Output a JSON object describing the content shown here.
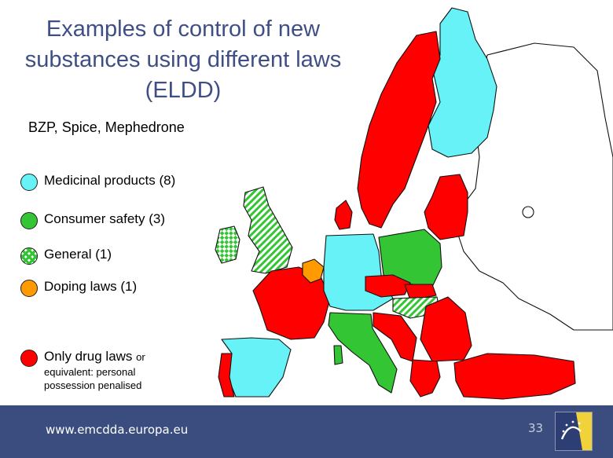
{
  "title": "Examples of control of new substances using different laws (ELDD)",
  "title_lines": [
    "Examples of control of new",
    "substances using different laws",
    "(ELDD)"
  ],
  "subtitle": "BZP, Spice, Mephedrone",
  "legend": [
    {
      "label": "Medicinal products (8)",
      "color": "#66f2f6",
      "pattern": "solid"
    },
    {
      "label": "Consumer safety (3)",
      "color": "#33c533",
      "pattern": "solid"
    },
    {
      "label": "General (1)",
      "color": "#33c533",
      "pattern": "checker"
    },
    {
      "label": "Doping laws (1)",
      "color": "#ff9a00",
      "pattern": "solid"
    },
    {
      "label": "Only drug laws",
      "suffix": "or",
      "note": "equivalent: personal possession penalised",
      "color": "#ff0000",
      "pattern": "solid"
    }
  ],
  "colors": {
    "medicinal": "#66f2f6",
    "consumer": "#33c533",
    "doping": "#ff9a00",
    "drug_laws": "#ff0000",
    "uncoloured": "#ffffff",
    "title": "#3f4f86",
    "footer": "#3b4d7e"
  },
  "footer": {
    "url": "www.emcdda.europa.eu",
    "page": "33"
  },
  "logo_icon": "emcdda-logo-icon"
}
